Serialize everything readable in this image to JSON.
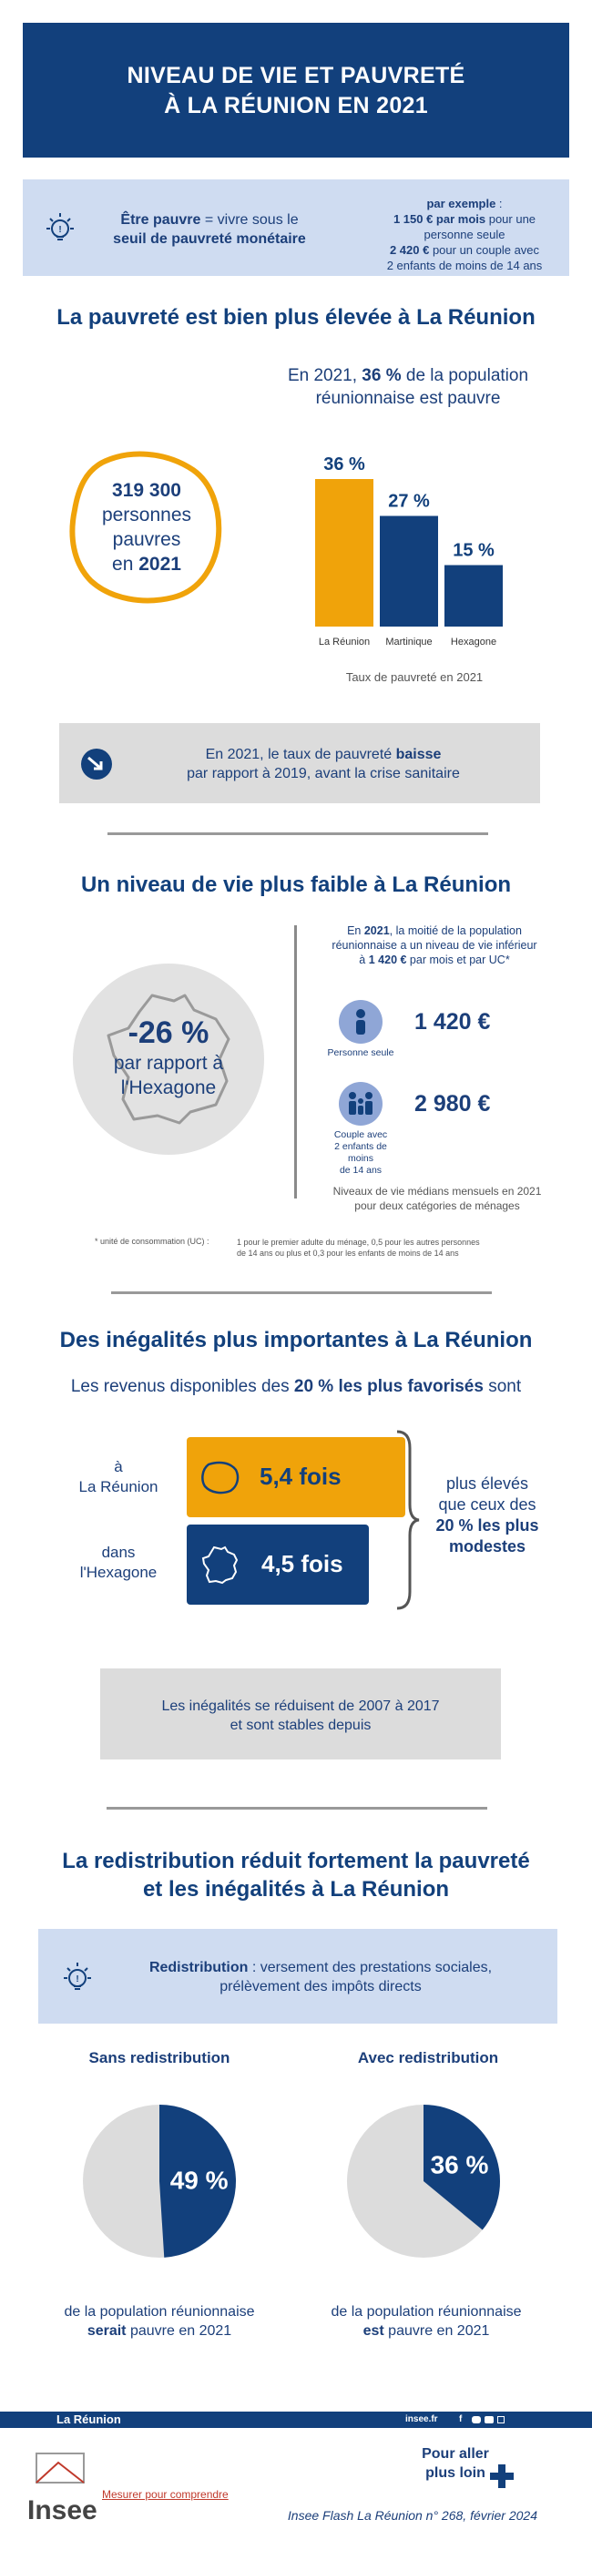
{
  "header": {
    "title_line1": "NIVEAU DE VIE ET PAUVRETÉ",
    "title_line2": "À LA RÉUNION EN 2021"
  },
  "definition": {
    "left_part1": "Être pauvre",
    "left_part2": " = vivre sous le",
    "left_line2": "seuil de pauvreté monétaire",
    "example_title": "par exemple",
    "example_colon": " :",
    "ex1_bold": "1 150 € par mois",
    "ex1_rest": " pour une",
    "ex1_line2": "personne seule",
    "ex2_bold": "2 420 €",
    "ex2_rest": " pour un couple avec",
    "ex2_line2": "2 enfants de moins de 14 ans"
  },
  "section1": {
    "title": "La pauvreté est bien plus élevée à La Réunion",
    "intro_pre": "En 2021, ",
    "intro_bold": "36 %",
    "intro_post": " de la population",
    "intro_line2": "réunionnaise est pauvre",
    "island_count": "319 300",
    "island_l2": "personnes",
    "island_l3": "pauvres",
    "island_l4_pre": "en ",
    "island_l4_bold": "2021",
    "chart_caption": "Taux de pauvreté en 2021",
    "callout_line1_pre": "En 2021, le taux de pauvreté ",
    "callout_line1_bold": "baisse",
    "callout_line2": "par rapport à 2019, avant la crise sanitaire"
  },
  "chart_data": {
    "type": "bar",
    "categories": [
      "La Réunion",
      "Martinique",
      "Hexagone"
    ],
    "values": [
      36,
      27,
      15
    ],
    "value_labels": [
      "36 %",
      "27 %",
      "15 %"
    ],
    "colors": [
      "#f0a30a",
      "#12407c",
      "#12407c"
    ],
    "title": "Taux de pauvreté en 2021",
    "ylim": [
      0,
      40
    ]
  },
  "section2": {
    "title": "Un niveau de vie plus faible à La Réunion",
    "big_value": "-26 %",
    "big_l2": "par rapport à",
    "big_l3": "l'Hexagone",
    "right_l1_pre": "En ",
    "right_l1_bold": "2021",
    "right_l1_post": ", la moitié de la population",
    "right_l2": "réunionnaise a un niveau de vie inférieur",
    "right_l3_pre": "à ",
    "right_l3_bold": "1 420 €",
    "right_l3_post": " par mois et par UC*",
    "person_label": "Personne seule",
    "person_value": "1 420 €",
    "couple_label_l1": "Couple avec",
    "couple_label_l2": "2 enfants de moins",
    "couple_label_l3": "de 14 ans",
    "couple_value": "2 980 €",
    "median_caption_l1": "Niveaux de vie médians mensuels en 2021",
    "median_caption_l2": "pour deux catégories de ménages",
    "footnote_label": "* unité de consommation (UC) :",
    "footnote_text_l1": "1 pour le premier adulte du ménage, 0,5 pour les autres personnes",
    "footnote_text_l2": "de 14 ans ou plus et 0,3 pour les enfants de moins de 14 ans"
  },
  "section3": {
    "title": "Des inégalités plus importantes à La Réunion",
    "intro_pre": "Les revenus disponibles des ",
    "intro_bold": "20 % les plus favorisés",
    "intro_post": " sont",
    "row1_label_l1": "à",
    "row1_label_l2": "La Réunion",
    "row1_value": "5,4 fois",
    "row2_label_l1": "dans",
    "row2_label_l2": "l'Hexagone",
    "row2_value": "4,5 fois",
    "right_l1": "plus élevés",
    "right_l2": "que ceux des",
    "right_l3": "20 % les plus",
    "right_l4": "modestes",
    "callout_l1": "Les inégalités se réduisent de 2007 à 2017",
    "callout_l2": "et sont stables depuis"
  },
  "section4": {
    "title_l1": "La redistribution réduit fortement la pauvreté",
    "title_l2": "et les inégalités à La Réunion",
    "def_bold": "Redistribution",
    "def_rest": " : versement des prestations sociales,",
    "def_l2": "prélèvement des impôts directs",
    "left_title": "Sans redistribution",
    "left_value": "49 %",
    "left_share": 49,
    "left_cap_l1": "de la population réunionnaise",
    "left_cap_bold": "serait",
    "left_cap_post": " pauvre en 2021",
    "right_title": "Avec redistribution",
    "right_value": "36 %",
    "right_share": 36,
    "right_cap_l1": "de la population réunionnaise",
    "right_cap_bold": "est",
    "right_cap_post": " pauvre en 2021"
  },
  "footer": {
    "region": "La Réunion",
    "site": "insee.fr",
    "logo_text": "Insee",
    "tagline": "Mesurer pour comprendre",
    "more_l1": "Pour aller",
    "more_l2": "plus loin",
    "source": "Insee Flash La Réunion n° 268, février 2024"
  },
  "colors": {
    "navy": "#12407c",
    "orange": "#f0a30a",
    "light_blue": "#cfdcf1",
    "gray": "#dcdcdc"
  }
}
